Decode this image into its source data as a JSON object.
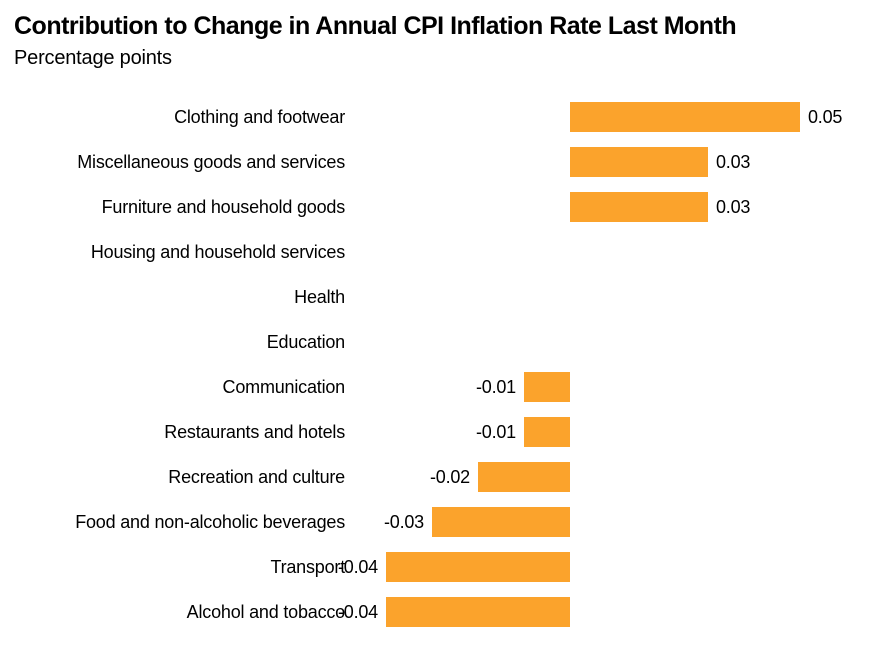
{
  "header": {
    "title": "Contribution to Change in Annual CPI Inflation Rate Last Month",
    "subtitle": "Percentage points"
  },
  "colors": {
    "bar": "#FBA32C",
    "text": "#000000",
    "background": "#FFFFFF"
  },
  "chart_data": {
    "type": "bar",
    "orientation": "horizontal",
    "title": "Contribution to Change in Annual CPI Inflation Rate Last Month",
    "subtitle": "Percentage points",
    "xlabel": "",
    "ylabel": "",
    "xlim": [
      -0.049,
      0.066
    ],
    "grid": false,
    "legend": "none",
    "zero_baseline": true,
    "categories": [
      "Clothing and footwear",
      "Miscellaneous goods and services",
      "Furniture and household goods",
      "Housing and household services",
      "Health",
      "Education",
      "Communication",
      "Restaurants and hotels",
      "Recreation and culture",
      "Food and non-alcoholic beverages",
      "Transport",
      "Alcohol and tobacco"
    ],
    "values": [
      0.05,
      0.03,
      0.03,
      0,
      0,
      0,
      -0.01,
      -0.01,
      -0.02,
      -0.03,
      -0.04,
      -0.04
    ],
    "value_labels": [
      "0.05",
      "0.03",
      "0.03",
      "",
      "",
      "",
      "-0.01",
      "-0.01",
      "-0.02",
      "-0.03",
      "-0.04",
      "-0.04"
    ]
  }
}
